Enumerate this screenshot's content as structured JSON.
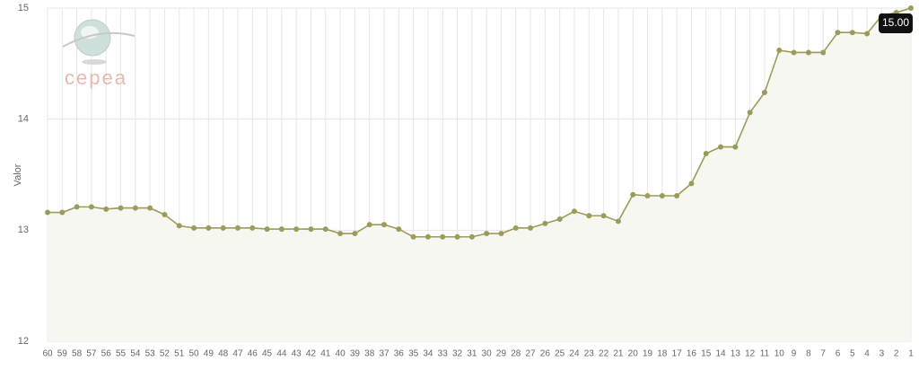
{
  "chart_data": {
    "type": "line",
    "y_label": "Valor",
    "logo_text": "cepea",
    "tooltip": "15.00",
    "categories": [
      "60",
      "59",
      "58",
      "57",
      "56",
      "55",
      "54",
      "53",
      "52",
      "51",
      "50",
      "49",
      "48",
      "47",
      "46",
      "45",
      "44",
      "43",
      "42",
      "41",
      "40",
      "39",
      "38",
      "37",
      "36",
      "35",
      "34",
      "33",
      "32",
      "31",
      "30",
      "29",
      "28",
      "27",
      "26",
      "25",
      "24",
      "23",
      "22",
      "21",
      "20",
      "19",
      "18",
      "17",
      "16",
      "15",
      "14",
      "13",
      "12",
      "11",
      "10",
      "9",
      "8",
      "7",
      "6",
      "5",
      "4",
      "3",
      "2",
      "1"
    ],
    "series": [
      {
        "color": "#9d9b5a",
        "values": [
          13.16,
          13.16,
          13.21,
          13.21,
          13.19,
          13.2,
          13.2,
          13.2,
          13.14,
          13.04,
          13.02,
          13.02,
          13.02,
          13.02,
          13.02,
          13.01,
          13.01,
          13.01,
          13.01,
          13.01,
          12.97,
          12.97,
          13.05,
          13.05,
          13.01,
          12.94,
          12.94,
          12.94,
          12.94,
          12.94,
          12.97,
          12.97,
          13.02,
          13.02,
          13.06,
          13.1,
          13.17,
          13.13,
          13.13,
          13.08,
          13.32,
          13.31,
          13.31,
          13.31,
          13.42,
          13.69,
          13.75,
          13.75,
          14.06,
          14.24,
          14.62,
          14.6,
          14.6,
          14.6,
          14.78,
          14.78,
          14.77,
          14.93,
          14.96,
          15.0
        ]
      }
    ],
    "ylim": [
      12,
      15
    ],
    "yticks": [
      12,
      13,
      14,
      15
    ],
    "grid": true,
    "area_fill": "#f7f7f2"
  }
}
